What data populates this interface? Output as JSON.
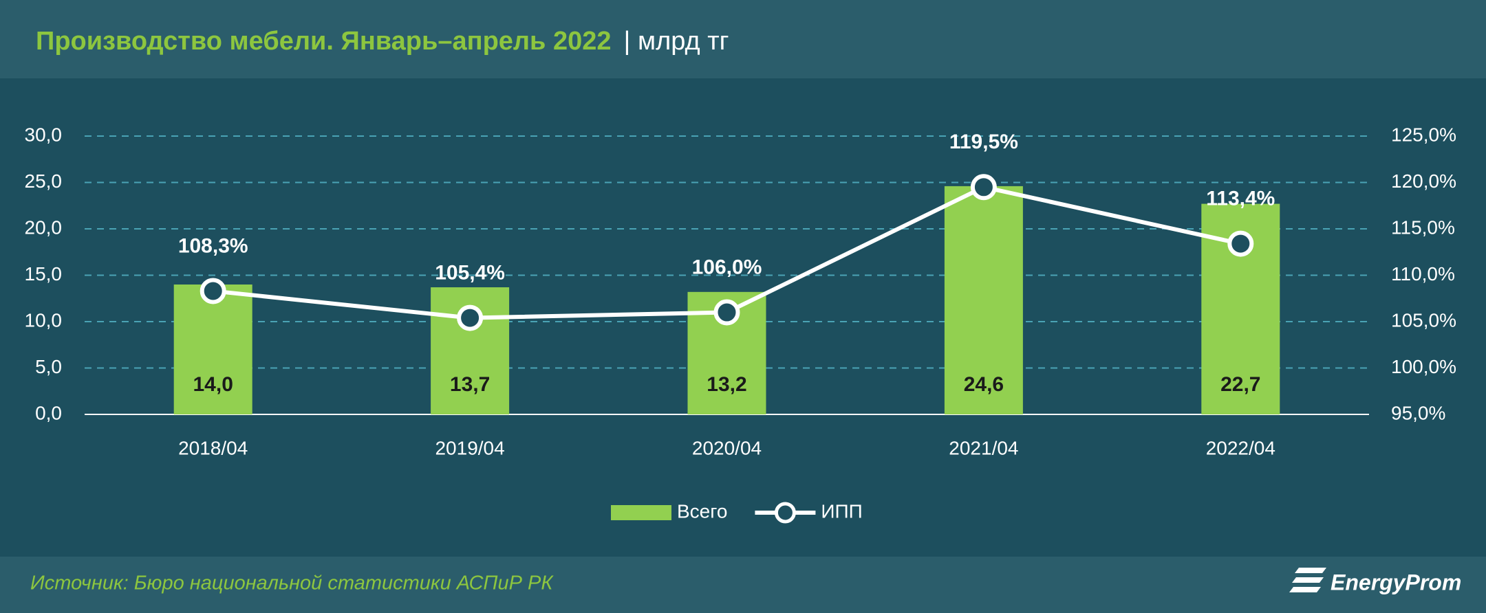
{
  "chart_data": {
    "type": "bar_line",
    "title": "Производство мебели. Январь–апрель 2022",
    "subtitle": "| млрд тг",
    "categories": [
      "2018/04",
      "2019/04",
      "2020/04",
      "2021/04",
      "2022/04"
    ],
    "series": [
      {
        "name": "Всего",
        "type": "bar",
        "color": "#92d050",
        "values": [
          14.0,
          13.7,
          13.2,
          24.6,
          22.7
        ],
        "value_labels": [
          "14,0",
          "13,7",
          "13,2",
          "24,6",
          "22,7"
        ]
      },
      {
        "name": "ИПП",
        "type": "line",
        "axis": "y2",
        "color": "#ffffff",
        "values": [
          108.3,
          105.4,
          106.0,
          119.5,
          113.4
        ],
        "value_labels": [
          "108,3%",
          "105,4%",
          "106,0%",
          "119,5%",
          "113,4%"
        ]
      }
    ],
    "ylim": [
      0,
      30
    ],
    "yticks": [
      {
        "value": 0,
        "label": "0,0"
      },
      {
        "value": 5,
        "label": "5,0"
      },
      {
        "value": 10,
        "label": "10,0"
      },
      {
        "value": 15,
        "label": "15,0"
      },
      {
        "value": 20,
        "label": "20,0"
      },
      {
        "value": 25,
        "label": "25,0"
      },
      {
        "value": 30,
        "label": "30,0"
      }
    ],
    "y2lim": [
      95,
      125
    ],
    "y2ticks": [
      {
        "value": 95,
        "label": "95,0%"
      },
      {
        "value": 100,
        "label": "100,0%"
      },
      {
        "value": 105,
        "label": "105,0%"
      },
      {
        "value": 110,
        "label": "110,0%"
      },
      {
        "value": 115,
        "label": "115,0%"
      },
      {
        "value": 120,
        "label": "120,0%"
      },
      {
        "value": 125,
        "label": "125,0%"
      }
    ],
    "grid": true,
    "source": "Источник: Бюро национальной статистики АСПиР РК",
    "logo": "EnergyProm"
  }
}
